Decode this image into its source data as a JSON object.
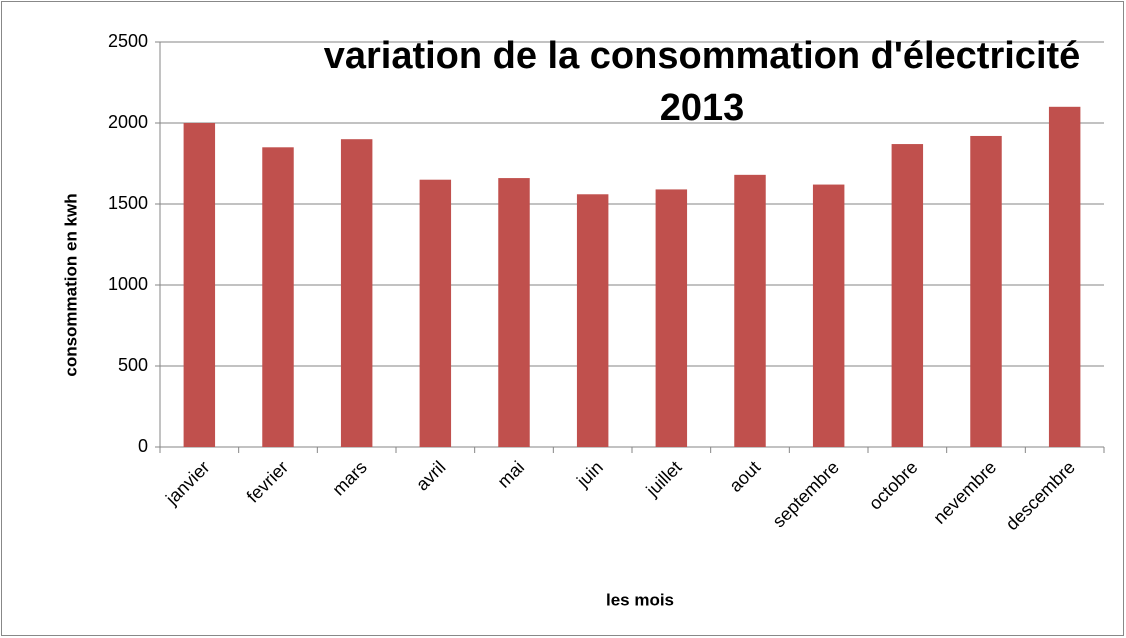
{
  "chart_data": {
    "type": "bar",
    "title": "variation de la consommation d'électricité 2013",
    "x_label": "les mois",
    "y_label": "consommation en kwh",
    "categories": [
      "janvier",
      "fevrier",
      "mars",
      "avril",
      "mai",
      "juin",
      "juillet",
      "aout",
      "septembre",
      "octobre",
      "nevembre",
      "descembre"
    ],
    "values": [
      2000,
      1850,
      1900,
      1650,
      1660,
      1560,
      1590,
      1680,
      1620,
      1870,
      1920,
      2100
    ],
    "color": "#c0504d",
    "ylim": [
      0,
      2500
    ],
    "yticks": [
      0,
      500,
      1000,
      1500,
      2000,
      2500
    ],
    "grid": true
  }
}
